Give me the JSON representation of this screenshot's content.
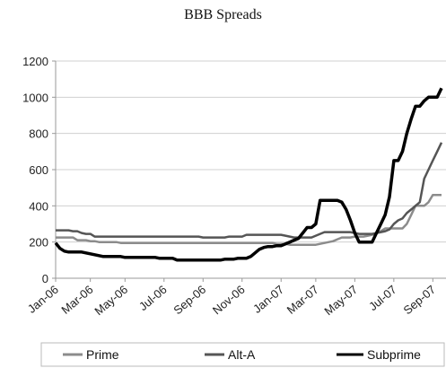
{
  "chart_data": {
    "type": "line",
    "title": "BBB Spreads",
    "xlabel": "",
    "ylabel": "",
    "ylim": [
      0,
      1200
    ],
    "yticks": [
      0,
      200,
      400,
      600,
      800,
      1000,
      1200
    ],
    "grid": true,
    "legend_position": "bottom",
    "x_tick_labels": [
      "Jan-06",
      "Mar-06",
      "May-06",
      "Jul-06",
      "Sep-06",
      "Nov-06",
      "Jan-07",
      "Mar-07",
      "May-07",
      "Jul-07",
      "Sep-07"
    ],
    "x_tick_index": [
      0,
      8,
      16,
      25,
      34,
      43,
      52,
      60,
      69,
      78,
      87
    ],
    "series": [
      {
        "name": "Prime",
        "color": "#8c8c8c",
        "values": [
          225,
          225,
          225,
          225,
          225,
          210,
          210,
          210,
          205,
          205,
          200,
          200,
          200,
          200,
          200,
          195,
          195,
          195,
          195,
          195,
          195,
          195,
          195,
          195,
          195,
          195,
          195,
          195,
          195,
          195,
          195,
          195,
          195,
          195,
          195,
          195,
          195,
          195,
          195,
          195,
          195,
          195,
          195,
          195,
          195,
          195,
          195,
          195,
          195,
          195,
          195,
          190,
          190,
          190,
          185,
          185,
          185,
          185,
          185,
          185,
          185,
          190,
          195,
          200,
          205,
          215,
          225,
          225,
          225,
          230,
          230,
          230,
          235,
          240,
          250,
          260,
          275,
          275,
          275,
          275,
          275,
          300,
          350,
          400,
          400,
          400,
          420,
          460,
          460,
          460
        ]
      },
      {
        "name": "Alt-A",
        "color": "#555555",
        "values": [
          265,
          265,
          265,
          265,
          260,
          260,
          250,
          245,
          245,
          230,
          230,
          230,
          230,
          230,
          230,
          230,
          230,
          230,
          230,
          230,
          230,
          230,
          230,
          230,
          230,
          230,
          230,
          230,
          230,
          230,
          230,
          230,
          230,
          230,
          225,
          225,
          225,
          225,
          225,
          225,
          230,
          230,
          230,
          230,
          240,
          240,
          240,
          240,
          240,
          240,
          240,
          240,
          240,
          235,
          230,
          225,
          225,
          225,
          225,
          225,
          235,
          245,
          255,
          255,
          255,
          255,
          255,
          255,
          255,
          250,
          245,
          245,
          245,
          245,
          250,
          255,
          260,
          270,
          300,
          320,
          330,
          360,
          380,
          400,
          420,
          550,
          600,
          650,
          700,
          750
        ]
      },
      {
        "name": "Subprime",
        "color": "#000000",
        "values": [
          195,
          165,
          150,
          145,
          145,
          145,
          145,
          140,
          135,
          130,
          125,
          120,
          120,
          120,
          120,
          120,
          115,
          115,
          115,
          115,
          115,
          115,
          115,
          115,
          110,
          110,
          110,
          110,
          100,
          100,
          100,
          100,
          100,
          100,
          100,
          100,
          100,
          100,
          100,
          105,
          105,
          105,
          110,
          110,
          110,
          120,
          140,
          160,
          170,
          175,
          175,
          180,
          180,
          190,
          200,
          210,
          220,
          250,
          280,
          280,
          300,
          430,
          430,
          430,
          430,
          430,
          420,
          380,
          320,
          250,
          200,
          200,
          200,
          200,
          250,
          300,
          350,
          450,
          650,
          650,
          700,
          800,
          880,
          950,
          950,
          980,
          1000,
          1000,
          1000,
          1050
        ]
      }
    ]
  }
}
